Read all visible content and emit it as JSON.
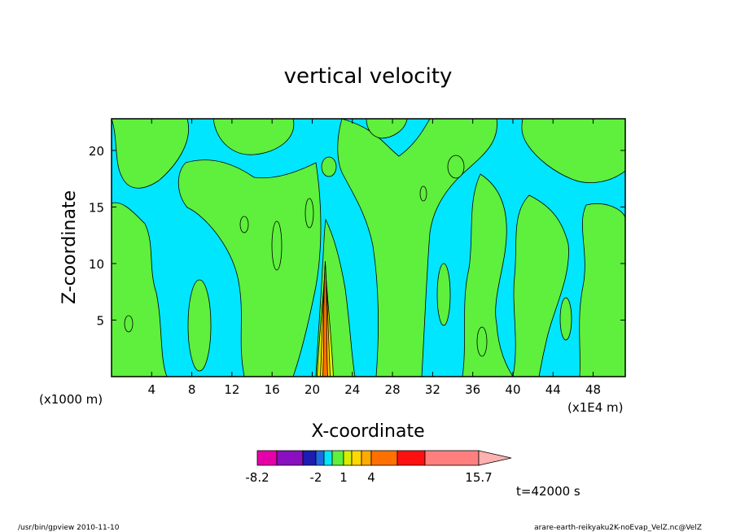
{
  "chart_data": {
    "type": "heatmap",
    "title": "vertical velocity",
    "xlabel": "X-coordinate",
    "ylabel": "Z-coordinate",
    "x_unit": "(x1E4 m)",
    "y_unit": "(x1000 m)",
    "xlim": [
      0,
      51.2
    ],
    "ylim": [
      0,
      22.8
    ],
    "x_ticks": [
      "4",
      "8",
      "12",
      "16",
      "20",
      "24",
      "28",
      "32",
      "36",
      "40",
      "44",
      "48"
    ],
    "x_tick_values": [
      4,
      8,
      12,
      16,
      20,
      24,
      28,
      32,
      36,
      40,
      44,
      48
    ],
    "y_ticks": [
      "5",
      "10",
      "15",
      "20"
    ],
    "y_tick_values": [
      5,
      10,
      15,
      20
    ],
    "colorbar": {
      "tick_labels": [
        "-8.2",
        "-2",
        "1",
        "4",
        "15.7"
      ],
      "tick_values": [
        -8.2,
        -2,
        1,
        4,
        15.7
      ],
      "min": -8.2,
      "max": 15.7,
      "colors": [
        "#e600aa",
        "#8a0fc0",
        "#1c1cb0",
        "#1f6ae0",
        "#00e6ff",
        "#5ef03c",
        "#d8ee00",
        "#ffd800",
        "#ffaa00",
        "#ff7000",
        "#ff1010",
        "#ff7f7f",
        "#ffb0b0"
      ]
    },
    "background_color": "#00e6ff",
    "updraft_color": "#5ef03c",
    "time_label": "t=42000 s"
  },
  "footer": {
    "left": "/usr/bin/gpview  2010-11-10",
    "right": "arare-earth-reikyaku2K-noEvap_VelZ.nc@VelZ"
  }
}
